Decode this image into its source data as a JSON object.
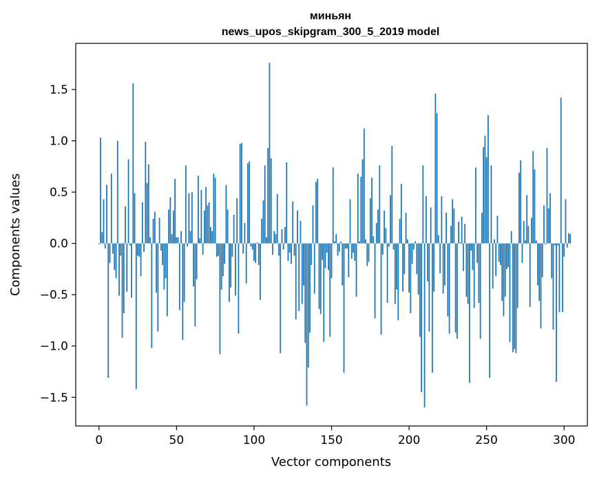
{
  "chart_data": {
    "type": "bar",
    "title": "миньян",
    "subtitle": "news_upos_skipgram_300_5_2019 model",
    "xlabel": "Vector components",
    "ylabel": "Components values",
    "xlim": [
      -15,
      315
    ],
    "ylim": [
      -1.78,
      1.95
    ],
    "x_ticks": [
      0,
      50,
      100,
      150,
      200,
      250,
      300
    ],
    "y_ticks": [
      1.5,
      1.0,
      0.5,
      0.0,
      -0.5,
      -1.0,
      -1.5
    ],
    "y_tick_labels": [
      "1.5",
      "1.0",
      "0.5",
      "0.0",
      "−0.5",
      "−1.0",
      "−1.5"
    ],
    "bar_color": "#1f77b4",
    "grid": false,
    "values": [
      -0.01,
      1.03,
      0.11,
      0.43,
      -0.05,
      0.57,
      -1.31,
      -0.19,
      0.68,
      -0.1,
      -0.26,
      -0.34,
      1.0,
      -0.51,
      -0.12,
      -0.92,
      -0.68,
      0.36,
      -0.47,
      0.82,
      -0.02,
      -0.53,
      1.56,
      0.49,
      -1.42,
      -0.12,
      -0.13,
      -0.32,
      0.4,
      -0.08,
      0.99,
      0.59,
      0.77,
      0.06,
      -1.02,
      0.24,
      0.31,
      -0.48,
      -0.86,
      0.25,
      -0.07,
      -0.21,
      -0.45,
      -0.34,
      -0.71,
      0.33,
      0.45,
      0.09,
      0.32,
      0.63,
      0.06,
      0.06,
      -0.65,
      0.12,
      -0.94,
      -0.57,
      0.76,
      -0.03,
      0.49,
      0.12,
      0.5,
      -0.42,
      -0.81,
      -0.35,
      0.66,
      0.05,
      0.52,
      -0.11,
      0.32,
      0.55,
      0.37,
      0.4,
      0.16,
      0.12,
      0.68,
      0.64,
      -0.13,
      -0.12,
      -1.08,
      -0.45,
      -0.32,
      -0.2,
      0.57,
      0.33,
      -0.57,
      -0.43,
      -0.13,
      0.28,
      -0.51,
      0.44,
      -0.88,
      0.97,
      0.98,
      -0.1,
      0.2,
      -0.39,
      0.78,
      0.8,
      -0.03,
      -0.06,
      -0.17,
      -0.19,
      0.01,
      -0.21,
      -0.55,
      0.24,
      0.42,
      0.76,
      0.06,
      0.93,
      1.76,
      0.83,
      -0.11,
      0.12,
      0.09,
      0.48,
      -0.12,
      -1.07,
      0.14,
      -0.06,
      0.16,
      0.79,
      -0.17,
      -0.09,
      -0.2,
      0.41,
      -0.12,
      -0.74,
      0.32,
      -0.66,
      0.22,
      -0.59,
      -0.41,
      -0.97,
      -1.58,
      -1.21,
      -0.87,
      -0.21,
      0.37,
      -0.49,
      0.6,
      0.63,
      -0.64,
      -0.69,
      -0.16,
      -0.96,
      -0.24,
      -0.09,
      -0.26,
      -0.91,
      -0.34,
      0.74,
      0.02,
      0.09,
      -0.12,
      -0.08,
      0.02,
      -0.41,
      -1.26,
      -0.05,
      -0.05,
      -0.33,
      0.43,
      -0.15,
      -0.09,
      -0.17,
      -0.52,
      0.68,
      0.02,
      0.65,
      0.82,
      1.12,
      0.04,
      -0.22,
      -0.18,
      0.44,
      0.64,
      0.07,
      -0.73,
      0.2,
      0.33,
      0.76,
      -0.89,
      -0.11,
      0.32,
      0.15,
      -0.58,
      -0.03,
      0.47,
      0.95,
      -0.06,
      -0.59,
      -0.45,
      -0.75,
      0.24,
      0.58,
      -0.47,
      -0.3,
      0.3,
      0.04,
      -0.48,
      -0.68,
      -0.2,
      -0.06,
      0.02,
      -0.3,
      -0.5,
      -0.91,
      -1.45,
      0.76,
      -1.6,
      0.46,
      -0.37,
      -0.86,
      0.35,
      -1.26,
      -0.47,
      1.46,
      1.27,
      0.08,
      -0.29,
      0.46,
      -0.49,
      -0.41,
      0.3,
      -0.71,
      -0.88,
      0.17,
      0.43,
      0.34,
      -0.87,
      -0.93,
      0.21,
      0.01,
      0.26,
      -0.27,
      0.19,
      -0.52,
      -0.59,
      -1.36,
      -0.07,
      -0.26,
      -0.63,
      0.74,
      -0.19,
      -0.58,
      -0.93,
      0.3,
      0.94,
      1.05,
      0.84,
      1.25,
      -1.31,
      0.76,
      -0.44,
      0.04,
      -0.32,
      0.27,
      -0.18,
      -0.21,
      -0.56,
      -0.71,
      -0.52,
      -0.25,
      -0.23,
      -0.96,
      0.12,
      -1.06,
      -1.03,
      -1.07,
      -0.63,
      0.69,
      0.81,
      -0.19,
      0.22,
      0.03,
      0.47,
      0.17,
      -0.62,
      0.25,
      0.9,
      0.72,
      0.03,
      -0.41,
      -0.56,
      -0.83,
      -0.33,
      0.37,
      -0.01,
      0.93,
      0.34,
      0.49,
      -0.34,
      -0.84,
      -0.02,
      -1.35,
      -0.02,
      -0.67,
      1.42,
      -0.67,
      -0.13,
      0.43,
      -0.04,
      0.1,
      0.09
    ]
  }
}
